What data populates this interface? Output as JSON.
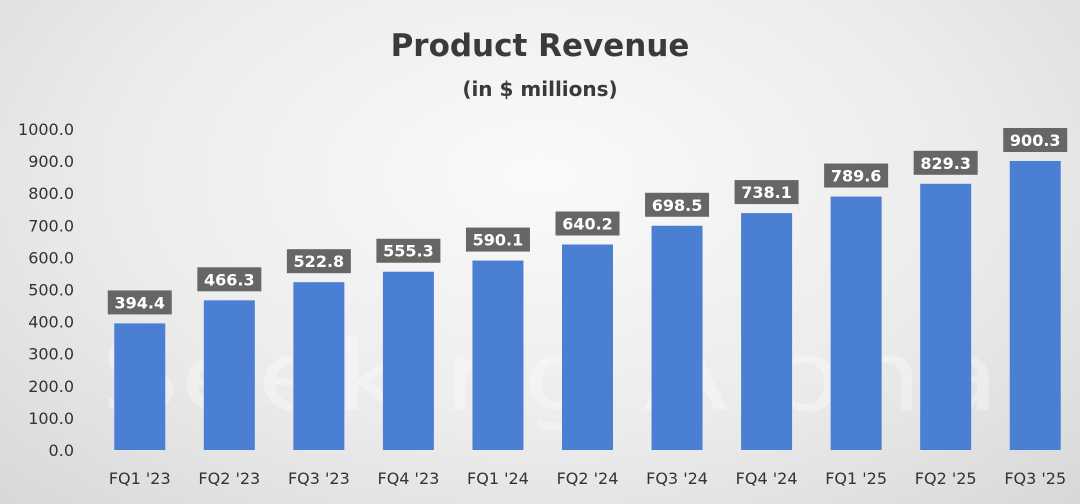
{
  "chart_data": {
    "type": "bar",
    "title": "Product Revenue",
    "subtitle": "(in $ millions)",
    "xlabel": "",
    "ylabel": "",
    "categories": [
      "FQ1 '23",
      "FQ2 '23",
      "FQ3 '23",
      "FQ4 '23",
      "FQ1 '24",
      "FQ2 '24",
      "FQ3 '24",
      "FQ4 '24",
      "FQ1 '25",
      "FQ2 '25",
      "FQ3 '25"
    ],
    "values": [
      394.4,
      466.3,
      522.8,
      555.3,
      590.1,
      640.2,
      698.5,
      738.1,
      789.6,
      829.3,
      900.3
    ],
    "value_labels": [
      "394.4",
      "466.3",
      "522.8",
      "555.3",
      "590.1",
      "640.2",
      "698.5",
      "738.1",
      "789.6",
      "829.3",
      "900.3"
    ],
    "ylim": [
      0,
      1000
    ],
    "y_ticks": [
      "0.0",
      "100.0",
      "200.0",
      "300.0",
      "400.0",
      "500.0",
      "600.0",
      "700.0",
      "800.0",
      "900.0",
      "1000.0"
    ],
    "grid": false,
    "legend": "none",
    "bar_color": "#4a7fd4",
    "label_box_color": "#666666",
    "label_text_color": "#ffffff"
  },
  "watermark": "Seeking Alpha"
}
